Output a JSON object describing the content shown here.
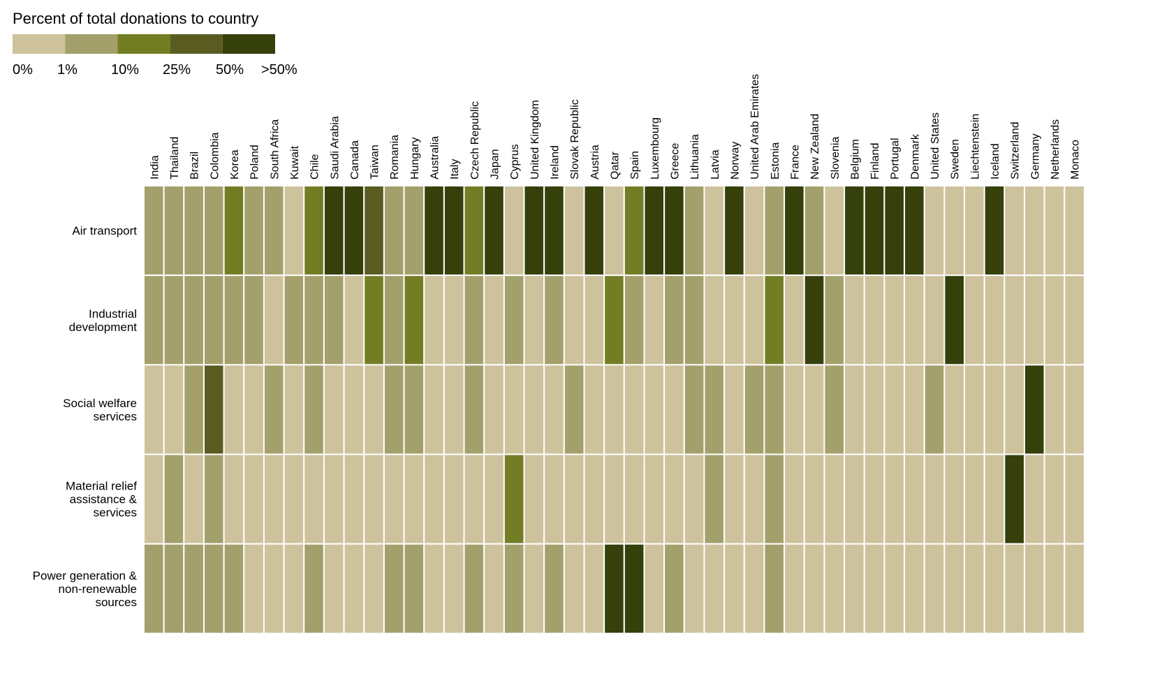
{
  "chart_data": {
    "type": "heatmap",
    "legend": {
      "title": "Percent of total donations to country",
      "labels": [
        "0%",
        "1%",
        "10%",
        "25%",
        "50%",
        ">50%"
      ],
      "colors": [
        "#cdc29c",
        "#a3a06c",
        "#737d24",
        "#595b21",
        "#36400b"
      ]
    },
    "columns": [
      "India",
      "Thailand",
      "Brazil",
      "Colombia",
      "Korea",
      "Poland",
      "South Africa",
      "Kuwait",
      "Chile",
      "Saudi Arabia",
      "Canada",
      "Taiwan",
      "Romania",
      "Hungary",
      "Australia",
      "Italy",
      "Czech Republic",
      "Japan",
      "Cyprus",
      "United Kingdom",
      "Ireland",
      "Slovak Republic",
      "Austria",
      "Qatar",
      "Spain",
      "Luxembourg",
      "Greece",
      "Lithuania",
      "Latvia",
      "Norway",
      "United Arab Emirates",
      "Estonia",
      "France",
      "New Zealand",
      "Slovenia",
      "Belgium",
      "Finland",
      "Portugal",
      "Denmark",
      "United States",
      "Sweden",
      "Liechtenstein",
      "Iceland",
      "Switzerland",
      "Germany",
      "Netherlands",
      "Monaco"
    ],
    "rows": [
      {
        "label": "Air transport",
        "label_lines": [
          "Air transport"
        ],
        "levels": [
          1,
          1,
          1,
          1,
          2,
          1,
          1,
          0,
          2,
          4,
          4,
          3,
          1,
          1,
          4,
          4,
          2,
          4,
          0,
          4,
          4,
          0,
          4,
          0,
          2,
          4,
          4,
          1,
          0,
          4,
          0,
          1,
          4,
          1,
          0,
          4,
          4,
          4,
          4,
          0,
          0,
          0,
          4,
          0,
          0,
          0,
          0
        ]
      },
      {
        "label": "Industrial development",
        "label_lines": [
          "Industrial",
          "development"
        ],
        "levels": [
          1,
          1,
          1,
          1,
          1,
          1,
          0,
          1,
          1,
          1,
          0,
          2,
          1,
          2,
          0,
          0,
          1,
          0,
          1,
          0,
          1,
          0,
          0,
          2,
          1,
          0,
          1,
          1,
          0,
          0,
          0,
          2,
          0,
          4,
          1,
          0,
          0,
          0,
          0,
          0,
          4,
          0,
          0,
          0,
          0,
          0,
          0
        ]
      },
      {
        "label": "Social welfare services",
        "label_lines": [
          "Social welfare",
          "services"
        ],
        "levels": [
          0,
          0,
          1,
          3,
          0,
          0,
          1,
          0,
          1,
          0,
          0,
          0,
          1,
          1,
          0,
          0,
          1,
          0,
          0,
          0,
          0,
          1,
          0,
          0,
          0,
          0,
          0,
          1,
          1,
          0,
          1,
          1,
          0,
          0,
          1,
          0,
          0,
          0,
          0,
          1,
          0,
          0,
          0,
          0,
          4,
          0,
          0
        ]
      },
      {
        "label": "Material relief assistance & services",
        "label_lines": [
          "Material relief",
          "assistance &",
          "services"
        ],
        "levels": [
          0,
          1,
          0,
          1,
          0,
          0,
          0,
          0,
          0,
          0,
          0,
          0,
          0,
          0,
          0,
          0,
          0,
          0,
          2,
          0,
          0,
          0,
          0,
          0,
          0,
          0,
          0,
          0,
          1,
          0,
          0,
          1,
          0,
          0,
          0,
          0,
          0,
          0,
          0,
          0,
          0,
          0,
          0,
          4,
          0,
          0,
          0
        ]
      },
      {
        "label": "Power generation & non-renewable sources",
        "label_lines": [
          "Power generation &",
          "non-renewable",
          "sources"
        ],
        "levels": [
          1,
          1,
          1,
          1,
          1,
          0,
          0,
          0,
          1,
          0,
          0,
          0,
          1,
          1,
          0,
          0,
          1,
          0,
          1,
          0,
          1,
          0,
          0,
          4,
          4,
          0,
          1,
          0,
          0,
          0,
          0,
          1,
          0,
          0,
          0,
          0,
          0,
          0,
          0,
          0,
          0,
          0,
          0,
          0,
          0,
          0,
          0
        ]
      }
    ]
  }
}
